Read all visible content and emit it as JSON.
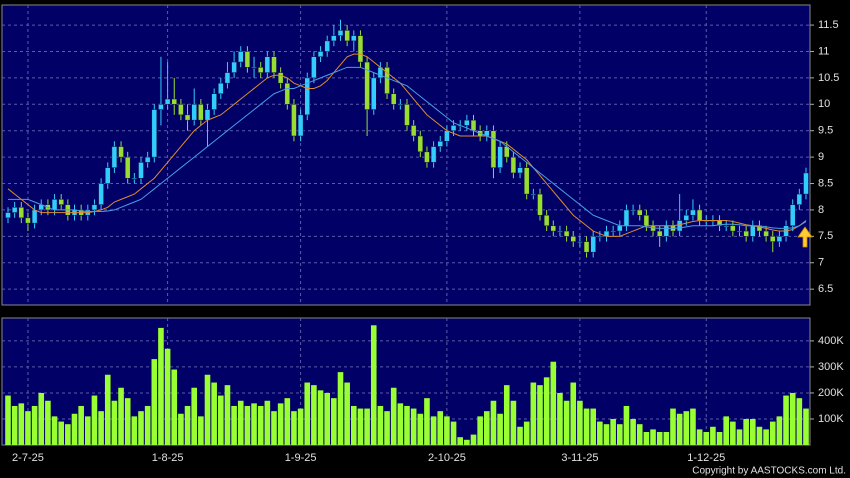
{
  "chart_data": [
    {
      "type": "candlestick",
      "open": [
        7.85,
        7.95,
        8.05,
        7.85,
        7.75,
        8.0,
        8.1,
        8.0,
        8.2,
        8.1,
        7.9,
        8.0,
        7.9,
        8.0,
        8.1,
        8.5,
        8.8,
        9.2,
        9.0,
        8.6,
        8.6,
        8.9,
        9.0,
        9.9,
        10.0,
        10.1,
        10.0,
        9.8,
        9.7,
        10.0,
        9.7,
        9.9,
        10.2,
        10.4,
        10.6,
        10.8,
        11.0,
        10.7,
        10.7,
        10.6,
        10.9,
        10.6,
        10.4,
        10.0,
        9.4,
        9.8,
        10.5,
        10.9,
        11.0,
        11.2,
        11.3,
        11.4,
        11.2,
        11.3,
        10.8,
        9.9,
        10.5,
        10.7,
        10.2,
        10.0,
        10.0,
        9.6,
        9.4,
        9.1,
        8.9,
        9.2,
        9.3,
        9.5,
        9.6,
        9.6,
        9.7,
        9.5,
        9.4,
        9.5,
        8.8,
        9.2,
        9.0,
        8.7,
        8.8,
        8.3,
        8.3,
        7.9,
        7.7,
        7.6,
        7.6,
        7.5,
        7.4,
        7.4,
        7.2,
        7.5,
        7.5,
        7.6,
        7.6,
        7.7,
        8.0,
        8.0,
        7.9,
        7.7,
        7.6,
        7.5,
        7.7,
        7.6,
        7.8,
        7.9,
        8.0,
        7.8,
        7.8,
        7.8,
        7.7,
        7.7,
        7.6,
        7.6,
        7.5,
        7.7,
        7.6,
        7.5,
        7.4,
        7.5,
        7.7,
        8.1,
        8.3
      ],
      "high": [
        8.05,
        8.15,
        8.15,
        7.95,
        8.1,
        8.2,
        8.2,
        8.3,
        8.3,
        8.2,
        8.1,
        8.1,
        8.1,
        8.2,
        8.6,
        8.9,
        9.3,
        9.3,
        9.1,
        8.7,
        9.0,
        9.1,
        10.0,
        10.9,
        10.8,
        10.5,
        10.1,
        10.0,
        10.3,
        10.1,
        10.0,
        10.3,
        10.5,
        10.8,
        11.0,
        11.1,
        11.1,
        10.9,
        10.8,
        11.0,
        11.0,
        10.7,
        10.5,
        10.1,
        9.9,
        10.6,
        11.0,
        11.1,
        11.3,
        11.5,
        11.6,
        11.5,
        11.4,
        11.4,
        10.9,
        10.6,
        10.8,
        10.8,
        10.3,
        10.1,
        10.1,
        9.7,
        9.5,
        9.2,
        9.3,
        9.4,
        9.6,
        9.7,
        9.7,
        9.8,
        9.8,
        9.6,
        9.6,
        9.6,
        9.3,
        9.3,
        9.1,
        8.9,
        8.9,
        8.4,
        8.4,
        8.0,
        7.8,
        7.7,
        7.7,
        7.6,
        7.5,
        7.5,
        7.6,
        7.6,
        7.7,
        7.7,
        7.8,
        8.1,
        8.1,
        8.1,
        8.0,
        7.8,
        7.7,
        7.8,
        7.8,
        8.3,
        8.0,
        8.2,
        8.1,
        7.9,
        7.9,
        7.9,
        7.8,
        7.8,
        7.7,
        7.7,
        7.8,
        7.8,
        7.7,
        7.6,
        7.6,
        7.8,
        8.2,
        8.4,
        8.8
      ],
      "low": [
        7.75,
        7.85,
        7.75,
        7.6,
        7.65,
        7.9,
        7.9,
        7.9,
        8.0,
        7.8,
        7.8,
        7.8,
        7.8,
        7.9,
        8.0,
        8.4,
        8.7,
        8.9,
        8.5,
        8.5,
        8.5,
        8.8,
        8.9,
        9.6,
        9.9,
        9.8,
        9.7,
        9.5,
        9.6,
        9.6,
        9.2,
        9.8,
        10.1,
        10.3,
        10.5,
        10.7,
        10.6,
        10.5,
        10.5,
        10.5,
        10.5,
        10.3,
        9.9,
        9.3,
        9.3,
        9.7,
        10.4,
        10.8,
        10.9,
        11.1,
        11.2,
        11.1,
        11.0,
        10.7,
        9.4,
        9.8,
        10.4,
        10.1,
        9.9,
        9.9,
        9.5,
        9.3,
        9.0,
        8.8,
        8.8,
        9.1,
        9.2,
        9.4,
        9.5,
        9.5,
        9.4,
        9.3,
        9.3,
        8.6,
        8.7,
        8.9,
        8.6,
        8.6,
        8.2,
        8.2,
        7.8,
        7.6,
        7.5,
        7.5,
        7.4,
        7.3,
        7.3,
        7.1,
        7.1,
        7.4,
        7.4,
        7.5,
        7.5,
        7.6,
        7.9,
        7.8,
        7.6,
        7.5,
        7.3,
        7.4,
        7.5,
        7.5,
        7.7,
        7.8,
        7.7,
        7.7,
        7.7,
        7.6,
        7.6,
        7.5,
        7.5,
        7.4,
        7.4,
        7.5,
        7.4,
        7.2,
        7.3,
        7.4,
        7.6,
        8.0,
        8.2
      ],
      "close": [
        7.95,
        8.05,
        7.85,
        7.75,
        8.0,
        8.1,
        8.0,
        8.2,
        8.1,
        7.9,
        8.0,
        7.9,
        8.0,
        8.1,
        8.5,
        8.8,
        9.2,
        9.0,
        8.6,
        8.6,
        8.9,
        9.0,
        9.9,
        10.0,
        10.1,
        10.0,
        9.8,
        9.7,
        10.0,
        9.7,
        9.9,
        10.2,
        10.4,
        10.6,
        10.8,
        11.0,
        10.7,
        10.7,
        10.6,
        10.9,
        10.6,
        10.4,
        10.0,
        9.4,
        9.8,
        10.5,
        10.9,
        11.0,
        11.2,
        11.3,
        11.4,
        11.2,
        11.3,
        10.8,
        9.9,
        10.5,
        10.7,
        10.2,
        10.0,
        10.0,
        9.6,
        9.4,
        9.1,
        8.9,
        9.2,
        9.3,
        9.5,
        9.6,
        9.6,
        9.7,
        9.5,
        9.4,
        9.5,
        8.8,
        9.2,
        9.0,
        8.7,
        8.8,
        8.3,
        8.3,
        7.9,
        7.7,
        7.6,
        7.6,
        7.5,
        7.4,
        7.4,
        7.2,
        7.5,
        7.5,
        7.6,
        7.6,
        7.7,
        8.0,
        8.0,
        7.9,
        7.7,
        7.6,
        7.5,
        7.7,
        7.6,
        7.8,
        7.9,
        8.0,
        7.8,
        7.8,
        7.8,
        7.7,
        7.7,
        7.6,
        7.6,
        7.5,
        7.7,
        7.6,
        7.5,
        7.4,
        7.5,
        7.7,
        8.1,
        8.3,
        8.7
      ],
      "up_color": "#33ccff",
      "down_color": "#99dd33",
      "series": [
        {
          "color": "#e08a30",
          "values": [
            8.4,
            8.3,
            8.2,
            8.1,
            8.0,
            7.95,
            7.95,
            7.95,
            7.95,
            7.95,
            7.95,
            7.95,
            7.95,
            7.97,
            8.0,
            8.05,
            8.15,
            8.2,
            8.25,
            8.3,
            8.4,
            8.5,
            8.6,
            8.75,
            8.9,
            9.05,
            9.2,
            9.35,
            9.5,
            9.6,
            9.7,
            9.75,
            9.8,
            9.9,
            10.0,
            10.1,
            10.2,
            10.3,
            10.4,
            10.5,
            10.55,
            10.55,
            10.5,
            10.4,
            10.35,
            10.3,
            10.3,
            10.35,
            10.45,
            10.6,
            10.75,
            10.9,
            10.95,
            10.95,
            10.9,
            10.8,
            10.7,
            10.6,
            10.5,
            10.4,
            10.25,
            10.1,
            9.95,
            9.8,
            9.7,
            9.6,
            9.5,
            9.45,
            9.4,
            9.4,
            9.4,
            9.4,
            9.4,
            9.35,
            9.3,
            9.25,
            9.15,
            9.05,
            8.95,
            8.8,
            8.65,
            8.5,
            8.35,
            8.2,
            8.05,
            7.9,
            7.8,
            7.7,
            7.6,
            7.55,
            7.5,
            7.5,
            7.5,
            7.55,
            7.6,
            7.65,
            7.7,
            7.7,
            7.7,
            7.7,
            7.7,
            7.72,
            7.75,
            7.78,
            7.8,
            7.8,
            7.8,
            7.8,
            7.8,
            7.78,
            7.75,
            7.72,
            7.7,
            7.68,
            7.65,
            7.62,
            7.6,
            7.6,
            7.63,
            7.7,
            7.8
          ]
        },
        {
          "color": "#4a9ee0",
          "values": [
            8.2,
            8.2,
            8.2,
            8.2,
            8.15,
            8.1,
            8.05,
            8.0,
            8.0,
            8.0,
            8.0,
            7.98,
            7.97,
            7.97,
            7.97,
            7.98,
            8.0,
            8.05,
            8.1,
            8.15,
            8.2,
            8.3,
            8.4,
            8.5,
            8.6,
            8.7,
            8.8,
            8.9,
            9.0,
            9.1,
            9.2,
            9.3,
            9.4,
            9.5,
            9.6,
            9.7,
            9.8,
            9.9,
            10.0,
            10.1,
            10.2,
            10.25,
            10.3,
            10.3,
            10.35,
            10.4,
            10.45,
            10.5,
            10.55,
            10.6,
            10.65,
            10.7,
            10.7,
            10.7,
            10.65,
            10.6,
            10.55,
            10.5,
            10.45,
            10.4,
            10.35,
            10.25,
            10.15,
            10.05,
            9.95,
            9.85,
            9.75,
            9.65,
            9.6,
            9.55,
            9.5,
            9.45,
            9.4,
            9.35,
            9.3,
            9.2,
            9.1,
            9.0,
            8.9,
            8.8,
            8.7,
            8.6,
            8.5,
            8.4,
            8.3,
            8.2,
            8.1,
            8.0,
            7.9,
            7.85,
            7.8,
            7.75,
            7.7,
            7.7,
            7.7,
            7.7,
            7.68,
            7.66,
            7.65,
            7.65,
            7.65,
            7.66,
            7.68,
            7.7,
            7.7,
            7.7,
            7.7,
            7.72,
            7.73,
            7.73,
            7.72,
            7.7,
            7.7,
            7.7,
            7.68,
            7.66,
            7.65,
            7.65,
            7.66,
            7.7,
            7.78
          ]
        }
      ],
      "ylim": [
        6.2,
        11.88
      ],
      "yticks": [
        6.5,
        7,
        7.5,
        8,
        8.5,
        9,
        9.5,
        10,
        10.5,
        11,
        11.5
      ],
      "grid": true
    },
    {
      "type": "bar",
      "categories": [
        null,
        null,
        null,
        "2-7-25",
        null,
        null,
        null,
        null,
        null,
        null,
        null,
        null,
        null,
        null,
        null,
        null,
        null,
        null,
        null,
        null,
        null,
        null,
        null,
        null,
        "1-8-25",
        null,
        null,
        null,
        null,
        null,
        null,
        null,
        null,
        null,
        null,
        null,
        null,
        null,
        null,
        null,
        null,
        null,
        null,
        null,
        "1-9-25",
        null,
        null,
        null,
        null,
        null,
        null,
        null,
        null,
        null,
        null,
        null,
        null,
        null,
        null,
        null,
        null,
        null,
        null,
        null,
        null,
        null,
        "2-10-25",
        null,
        null,
        null,
        null,
        null,
        null,
        null,
        null,
        null,
        null,
        null,
        null,
        null,
        null,
        null,
        null,
        null,
        null,
        null,
        "3-11-25",
        null,
        null,
        null,
        null,
        null,
        null,
        null,
        null,
        null,
        null,
        null,
        null,
        null,
        null,
        null,
        null,
        null,
        null,
        "1-12-25",
        null,
        null,
        null,
        null,
        null,
        null,
        null,
        null,
        null,
        null,
        null,
        null,
        null,
        null,
        null
      ],
      "values": [
        190000,
        150000,
        160000,
        130000,
        150000,
        200000,
        170000,
        110000,
        90000,
        80000,
        120000,
        150000,
        110000,
        190000,
        130000,
        270000,
        170000,
        220000,
        180000,
        110000,
        130000,
        150000,
        330000,
        450000,
        370000,
        290000,
        120000,
        150000,
        220000,
        110000,
        270000,
        240000,
        190000,
        230000,
        150000,
        170000,
        150000,
        160000,
        150000,
        170000,
        130000,
        160000,
        180000,
        130000,
        140000,
        240000,
        230000,
        210000,
        200000,
        180000,
        280000,
        240000,
        150000,
        140000,
        140000,
        460000,
        150000,
        130000,
        220000,
        160000,
        150000,
        140000,
        120000,
        180000,
        110000,
        130000,
        110000,
        90000,
        30000,
        20000,
        40000,
        110000,
        130000,
        170000,
        120000,
        230000,
        170000,
        70000,
        90000,
        240000,
        230000,
        260000,
        320000,
        200000,
        170000,
        240000,
        170000,
        140000,
        140000,
        90000,
        80000,
        100000,
        80000,
        150000,
        100000,
        80000,
        50000,
        60000,
        50000,
        50000,
        140000,
        120000,
        130000,
        140000,
        60000,
        50000,
        70000,
        50000,
        110000,
        90000,
        60000,
        100000,
        100000,
        70000,
        60000,
        90000,
        110000,
        190000,
        200000,
        180000,
        140000
      ],
      "color": "#99ff33",
      "ylim": [
        0,
        488000
      ],
      "yticks": [
        {
          "value": 100000,
          "label": "100K"
        },
        {
          "value": 200000,
          "label": "200K"
        },
        {
          "value": 300000,
          "label": "300K"
        },
        {
          "value": 400000,
          "label": "400K"
        }
      ],
      "grid": true
    }
  ],
  "footer": "Copyright by AASTOCKS.com Ltd."
}
